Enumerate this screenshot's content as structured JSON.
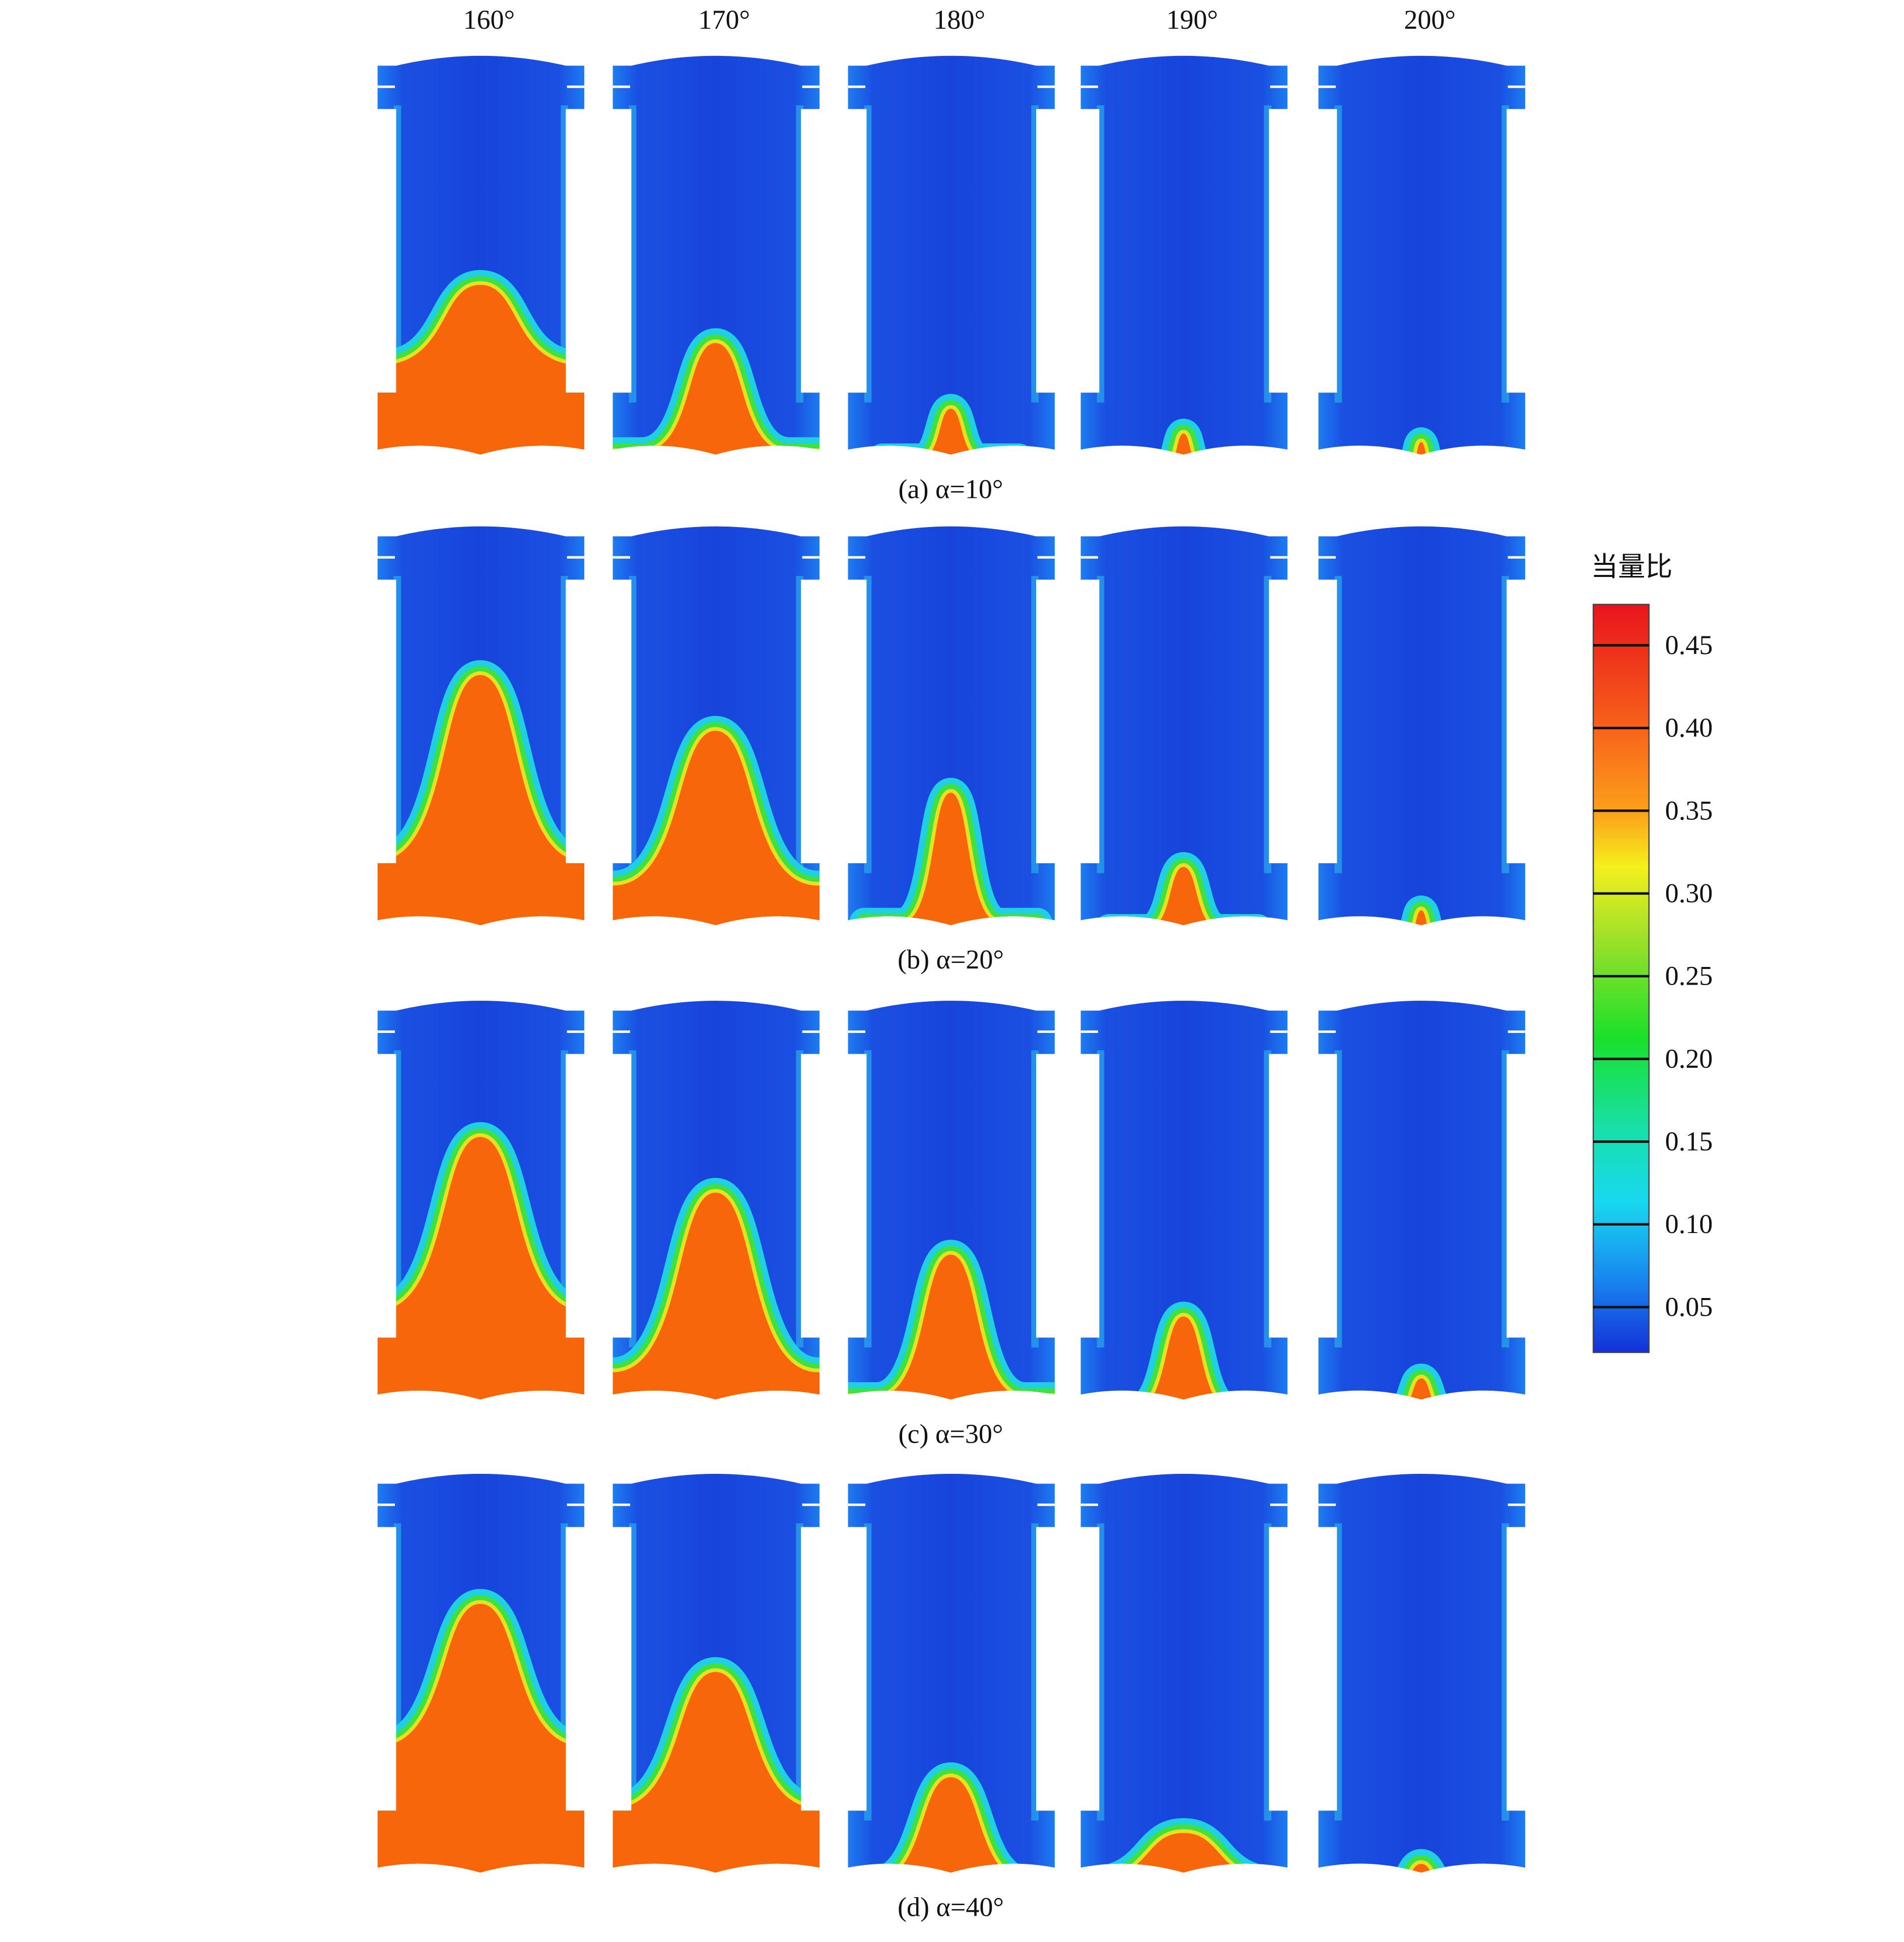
{
  "columns": [
    "160°",
    "170°",
    "180°",
    "190°",
    "200°"
  ],
  "rows": [
    {
      "caption": "(a) α=10°"
    },
    {
      "caption": "(b) α=20°"
    },
    {
      "caption": "(c) α=30°"
    },
    {
      "caption": "(d) α=40°"
    }
  ],
  "colorbar": {
    "title": "当量比",
    "ticks": [
      "0.45",
      "0.40",
      "0.35",
      "0.30",
      "0.25",
      "0.20",
      "0.15",
      "0.10",
      "0.05"
    ]
  }
}
